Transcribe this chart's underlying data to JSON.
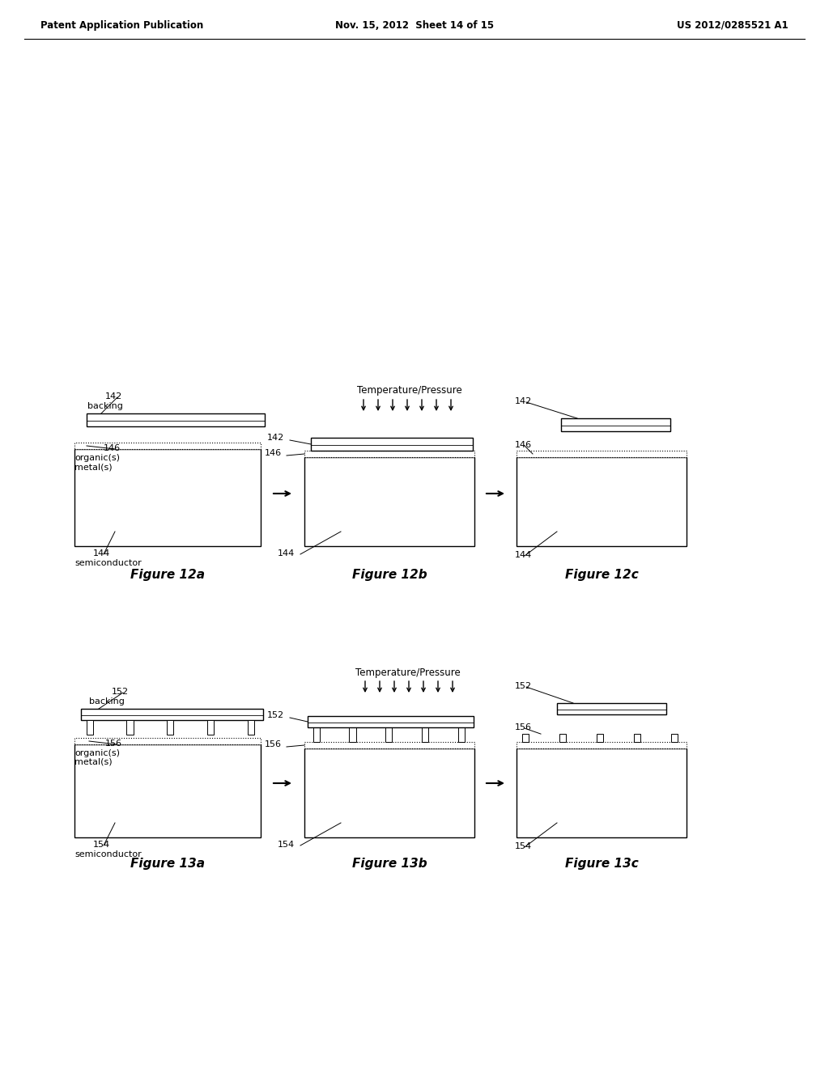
{
  "header_left": "Patent Application Publication",
  "header_mid": "Nov. 15, 2012  Sheet 14 of 15",
  "header_right": "US 2012/0285521 A1",
  "bg_color": "#ffffff",
  "fig12_labels": {
    "12a": {
      "num1": "142",
      "name1": "backing",
      "num2": "146",
      "name2a": "organic(s)",
      "name2b": "metal(s)",
      "num3": "144",
      "name3": "semiconductor"
    },
    "12b": {
      "num1": "142",
      "num2": "146",
      "num3": "144"
    },
    "12c": {
      "num1": "142",
      "num2": "146",
      "num3": "144"
    }
  },
  "fig13_labels": {
    "13a": {
      "num1": "152",
      "name1": "backing",
      "num2": "156",
      "name2a": "organic(s)",
      "name2b": "metal(s)",
      "num3": "154",
      "name3": "semiconductor"
    },
    "13b": {
      "num1": "152",
      "num2": "156",
      "num3": "154"
    },
    "13c": {
      "num1": "152",
      "num2": "156",
      "num3": "154"
    }
  },
  "temp_pressure": "Temperature/Pressure",
  "figure_captions": [
    "Figure 12a",
    "Figure 12b",
    "Figure 12c",
    "Figure 13a",
    "Figure 13b",
    "Figure 13c"
  ]
}
